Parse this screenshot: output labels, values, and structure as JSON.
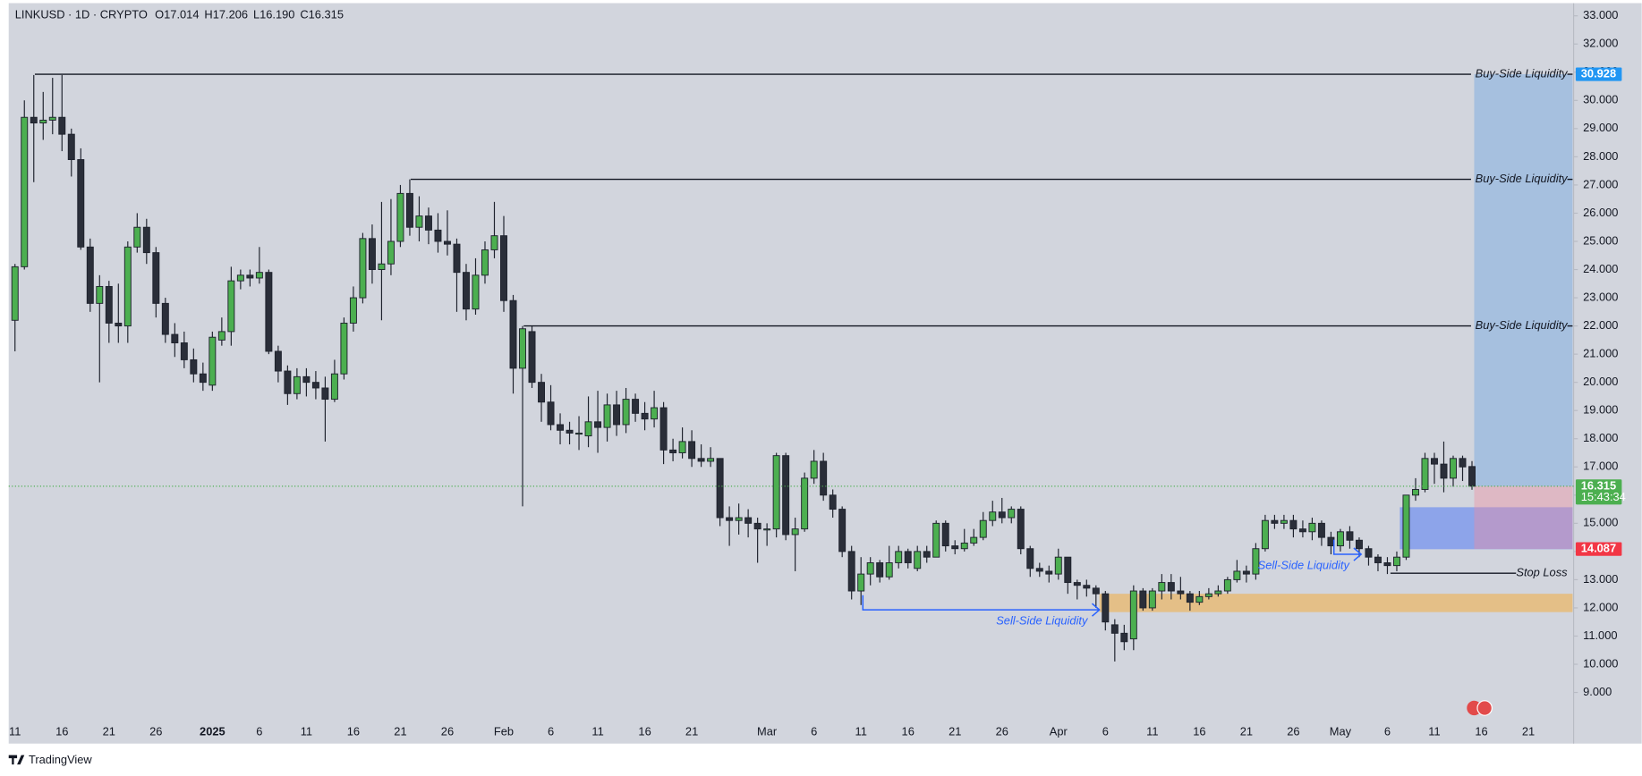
{
  "chart_data": {
    "type": "candlestick",
    "header": {
      "symbol": "LINKUSD · 1D · CRYPTO",
      "ohlc": [
        "O17.014",
        "H17.206",
        "L16.190",
        "C16.315"
      ]
    },
    "brand": "TradingView",
    "up_color": "#4caf50",
    "down_color": "#2a2e39",
    "categories": [
      "11",
      null,
      null,
      null,
      null,
      "16",
      null,
      null,
      null,
      null,
      "21",
      null,
      null,
      null,
      null,
      "26",
      null,
      null,
      null,
      null,
      null,
      "2025",
      null,
      null,
      null,
      null,
      "6",
      null,
      null,
      null,
      null,
      "11",
      null,
      null,
      null,
      null,
      "16",
      null,
      null,
      null,
      null,
      "21",
      null,
      null,
      null,
      null,
      "26",
      null,
      null,
      null,
      null,
      null,
      "Feb",
      null,
      null,
      null,
      null,
      "6",
      null,
      null,
      null,
      null,
      "11",
      null,
      null,
      null,
      null,
      "16",
      null,
      null,
      null,
      null,
      "21",
      null,
      null,
      null,
      null,
      null,
      null,
      null,
      "Mar",
      null,
      null,
      null,
      null,
      "6",
      null,
      null,
      null,
      null,
      "11",
      null,
      null,
      null,
      null,
      "16",
      null,
      null,
      null,
      null,
      "21",
      null,
      null,
      null,
      null,
      "26",
      null,
      null,
      null,
      null,
      null,
      "Apr",
      null,
      null,
      null,
      null,
      "6",
      null,
      null,
      null,
      null,
      "11",
      null,
      null,
      null,
      null,
      "16",
      null,
      null,
      null,
      null,
      "21",
      null,
      null,
      null,
      null,
      "26",
      null,
      null,
      null,
      null,
      "May",
      null,
      null,
      null,
      null,
      "6",
      null,
      null,
      null,
      null,
      "11",
      null,
      null,
      null,
      null,
      "16",
      null,
      null,
      null,
      null,
      "21"
    ],
    "open": [
      22.2,
      24.1,
      29.4,
      29.2,
      29.3,
      29.4,
      28.8,
      27.9,
      24.8,
      22.8,
      23.4,
      22.1,
      22.0,
      24.8,
      25.5,
      24.6,
      22.8,
      21.7,
      21.4,
      20.8,
      20.3,
      19.9,
      21.5,
      21.8,
      23.6,
      23.8,
      23.7,
      23.9,
      21.1,
      20.4,
      19.6,
      20.2,
      20.0,
      19.8,
      19.4,
      20.3,
      22.1,
      23.0,
      25.1,
      24.0,
      24.2,
      25.0,
      26.7,
      25.5,
      25.9,
      25.4,
      25.0,
      24.9,
      23.9,
      22.6,
      23.8,
      24.7,
      25.2,
      22.9,
      20.5,
      21.8,
      20.0,
      19.3,
      18.5,
      18.3,
      18.2,
      18.1,
      18.6,
      18.4,
      19.2,
      18.5,
      19.4,
      18.9,
      18.7,
      19.1,
      17.6,
      17.5,
      17.9,
      17.3,
      17.2,
      17.3,
      15.2,
      15.1,
      15.2,
      15.0,
      14.8,
      14.8,
      17.4,
      14.6,
      14.8,
      16.6,
      17.2,
      16.0,
      15.5,
      14.0,
      12.6,
      13.2,
      13.6,
      13.1,
      13.6,
      14.0,
      13.4,
      14.0,
      13.8,
      15.0,
      14.2,
      14.1,
      14.3,
      14.5,
      15.1,
      15.4,
      15.2,
      15.5,
      14.1,
      13.4,
      13.3,
      13.2,
      13.8,
      12.9,
      12.8,
      12.7,
      12.5,
      11.4,
      11.1,
      10.9,
      12.6,
      12.0,
      12.6,
      12.9,
      12.6,
      12.5,
      12.2,
      12.4,
      12.5,
      12.6,
      13.0,
      13.3,
      13.2,
      14.1,
      15.1,
      15.0,
      15.1,
      14.8,
      14.7,
      15.0,
      14.5,
      14.2,
      14.7,
      14.4,
      14.1,
      13.8,
      13.6,
      13.5,
      13.8,
      16.0,
      16.2,
      17.3,
      17.1,
      16.6,
      17.3,
      17.014,
      null,
      null,
      null,
      null,
      null,
      null
    ],
    "high": [
      24.2,
      30.0,
      30.9,
      30.3,
      30.8,
      30.9,
      29.0,
      28.3,
      25.1,
      23.8,
      23.6,
      23.5,
      25.0,
      26.0,
      25.8,
      24.8,
      23.0,
      22.1,
      21.8,
      21.2,
      20.7,
      21.8,
      22.3,
      24.1,
      24.0,
      24.0,
      24.8,
      24.0,
      21.3,
      20.6,
      20.5,
      20.5,
      20.4,
      20.2,
      20.8,
      22.3,
      23.4,
      25.3,
      25.6,
      26.4,
      26.5,
      27.0,
      27.2,
      26.6,
      26.2,
      26.0,
      26.1,
      25.1,
      24.2,
      24.4,
      25.0,
      26.4,
      25.9,
      23.1,
      22.0,
      22.0,
      20.3,
      19.9,
      18.9,
      18.6,
      18.8,
      19.5,
      19.7,
      19.6,
      19.7,
      19.8,
      19.6,
      19.3,
      19.7,
      19.3,
      18.0,
      18.4,
      18.3,
      17.8,
      17.7,
      17.3,
      15.6,
      15.7,
      15.5,
      15.2,
      15.0,
      17.5,
      17.5,
      15.2,
      16.8,
      17.6,
      17.5,
      16.2,
      15.6,
      14.2,
      13.8,
      13.8,
      13.7,
      14.2,
      14.2,
      14.1,
      14.2,
      14.2,
      15.1,
      15.1,
      14.4,
      14.8,
      14.8,
      15.4,
      15.8,
      15.9,
      15.6,
      15.6,
      14.2,
      13.6,
      13.5,
      14.1,
      13.8,
      13.0,
      13.0,
      12.8,
      12.6,
      11.6,
      11.4,
      12.8,
      12.7,
      12.7,
      13.2,
      13.2,
      13.1,
      12.6,
      12.6,
      12.7,
      12.8,
      13.1,
      13.7,
      13.5,
      14.3,
      15.3,
      15.3,
      15.3,
      15.3,
      15.1,
      15.2,
      15.1,
      14.7,
      14.8,
      14.9,
      14.5,
      14.2,
      13.9,
      13.8,
      14.0,
      16.0,
      16.6,
      17.5,
      17.5,
      17.9,
      17.4,
      17.4,
      17.206,
      null,
      null,
      null,
      null,
      null,
      null
    ],
    "low": [
      21.1,
      24.0,
      27.1,
      28.6,
      28.8,
      28.2,
      27.3,
      24.7,
      22.5,
      20.0,
      21.4,
      21.4,
      21.4,
      24.6,
      24.2,
      22.3,
      21.4,
      20.9,
      20.5,
      20.0,
      19.7,
      19.7,
      21.3,
      21.3,
      23.3,
      23.4,
      23.5,
      21.0,
      20.0,
      19.2,
      19.4,
      19.5,
      19.4,
      17.9,
      19.3,
      20.1,
      21.8,
      22.8,
      23.5,
      22.2,
      23.8,
      24.8,
      25.2,
      25.0,
      24.9,
      24.6,
      24.5,
      22.5,
      22.2,
      22.4,
      23.5,
      24.4,
      22.5,
      19.6,
      15.6,
      19.8,
      18.6,
      18.3,
      17.8,
      17.8,
      17.6,
      17.7,
      17.5,
      17.9,
      18.1,
      18.2,
      18.6,
      18.3,
      18.4,
      17.1,
      17.2,
      17.3,
      17.0,
      17.0,
      17.0,
      14.9,
      14.2,
      14.6,
      14.5,
      13.6,
      14.2,
      14.5,
      14.4,
      13.3,
      14.7,
      16.4,
      15.8,
      15.2,
      13.8,
      12.3,
      12.1,
      12.8,
      12.9,
      13.0,
      13.4,
      13.4,
      13.3,
      13.6,
      13.8,
      14.0,
      13.9,
      14.0,
      14.2,
      14.4,
      14.9,
      15.0,
      15.0,
      13.9,
      13.1,
      13.1,
      12.9,
      13.0,
      12.5,
      12.3,
      12.4,
      12.0,
      11.2,
      10.1,
      10.5,
      10.5,
      11.9,
      11.9,
      12.3,
      12.3,
      12.3,
      11.9,
      12.1,
      12.3,
      12.4,
      12.5,
      12.9,
      12.9,
      13.0,
      14.0,
      14.8,
      14.8,
      14.5,
      14.5,
      14.4,
      14.2,
      13.9,
      14.0,
      14.1,
      13.8,
      13.5,
      13.3,
      13.2,
      13.3,
      13.7,
      15.8,
      16.1,
      16.4,
      16.1,
      16.3,
      16.5,
      16.19,
      null,
      null,
      null,
      null,
      null,
      null
    ],
    "close": [
      24.1,
      29.4,
      29.2,
      29.3,
      29.4,
      28.8,
      27.9,
      24.8,
      22.8,
      23.4,
      22.1,
      22.0,
      24.8,
      25.5,
      24.6,
      22.8,
      21.7,
      21.4,
      20.8,
      20.3,
      20.0,
      21.6,
      21.8,
      23.6,
      23.8,
      23.7,
      23.9,
      21.1,
      20.4,
      19.6,
      20.2,
      20.0,
      19.8,
      19.4,
      20.3,
      22.1,
      23.0,
      25.1,
      24.0,
      24.2,
      25.0,
      26.7,
      25.5,
      25.9,
      25.4,
      25.0,
      24.9,
      23.9,
      22.6,
      23.8,
      24.7,
      25.2,
      22.9,
      20.5,
      21.9,
      20.0,
      19.3,
      18.5,
      18.3,
      18.2,
      18.2,
      18.6,
      18.4,
      19.2,
      18.5,
      19.4,
      18.9,
      18.7,
      19.1,
      17.6,
      17.5,
      17.9,
      17.3,
      17.2,
      17.3,
      15.2,
      15.1,
      15.2,
      15.0,
      14.8,
      14.8,
      17.4,
      14.6,
      14.8,
      16.6,
      17.2,
      16.0,
      15.5,
      14.0,
      12.6,
      13.2,
      13.6,
      13.1,
      13.6,
      14.0,
      13.6,
      14.0,
      13.8,
      15.0,
      14.2,
      14.1,
      14.3,
      14.5,
      15.1,
      15.4,
      15.2,
      15.5,
      14.1,
      13.4,
      13.3,
      13.2,
      13.8,
      12.9,
      12.8,
      12.7,
      12.5,
      11.5,
      11.1,
      10.8,
      12.6,
      12.0,
      12.6,
      12.9,
      12.6,
      12.5,
      12.2,
      12.4,
      12.5,
      12.6,
      13.0,
      13.3,
      13.2,
      14.1,
      15.1,
      15.0,
      15.1,
      14.8,
      14.7,
      15.0,
      14.5,
      14.2,
      14.7,
      14.4,
      14.1,
      13.8,
      13.6,
      13.5,
      13.8,
      16.0,
      16.2,
      17.3,
      17.1,
      16.6,
      17.3,
      17.0,
      16.315,
      null,
      null,
      null,
      null,
      null,
      null
    ],
    "ylim": [
      8.04,
      33.45
    ],
    "yticks": [
      {
        "value": 9,
        "label": "9.000"
      },
      {
        "value": 10,
        "label": "10.000"
      },
      {
        "value": 11,
        "label": "11.000"
      },
      {
        "value": 12,
        "label": "12.000"
      },
      {
        "value": 13,
        "label": "13.000"
      },
      {
        "value": 14,
        "label": "14.000"
      },
      {
        "value": 15,
        "label": "15.000"
      },
      {
        "value": 16,
        "label": "16.000"
      },
      {
        "value": 17,
        "label": "17.000"
      },
      {
        "value": 18,
        "label": "18.000"
      },
      {
        "value": 19,
        "label": "19.000"
      },
      {
        "value": 20,
        "label": "20.000"
      },
      {
        "value": 21,
        "label": "21.000"
      },
      {
        "value": 22,
        "label": "22.000"
      },
      {
        "value": 23,
        "label": "23.000"
      },
      {
        "value": 24,
        "label": "24.000"
      },
      {
        "value": 25,
        "label": "25.000"
      },
      {
        "value": 26,
        "label": "26.000"
      },
      {
        "value": 27,
        "label": "27.000"
      },
      {
        "value": 28,
        "label": "28.000"
      },
      {
        "value": 29,
        "label": "29.000"
      },
      {
        "value": 30,
        "label": "30.000"
      },
      {
        "value": 31,
        "label": "31.000"
      },
      {
        "value": 32,
        "label": "32.000"
      },
      {
        "value": 33,
        "label": "33.000"
      }
    ],
    "grid": false,
    "levels": [
      {
        "label": "Buy-Side Liquidity",
        "value": 30.928
      },
      {
        "label": "Buy-Side Liquidity",
        "value": 27.2
      },
      {
        "label": "Buy-Side Liquidity",
        "value": 22.0
      }
    ],
    "stop_loss": {
      "label": "Stop Loss",
      "value": 13.23
    },
    "sell_side": [
      {
        "label": "Sell-Side Liquidity",
        "value": 11.93
      },
      {
        "label": "Sell-Side Liquidity",
        "value": 13.9
      }
    ],
    "zones": [
      {
        "low": 11.85,
        "high": 12.5,
        "color": "#e8bb78"
      },
      {
        "low": 14.08,
        "high": 15.57,
        "color": "#6f8ff0"
      }
    ],
    "position": {
      "target": 30.928,
      "entry": 16.315,
      "stop": 14.087,
      "countdown": "15:43:34"
    }
  }
}
